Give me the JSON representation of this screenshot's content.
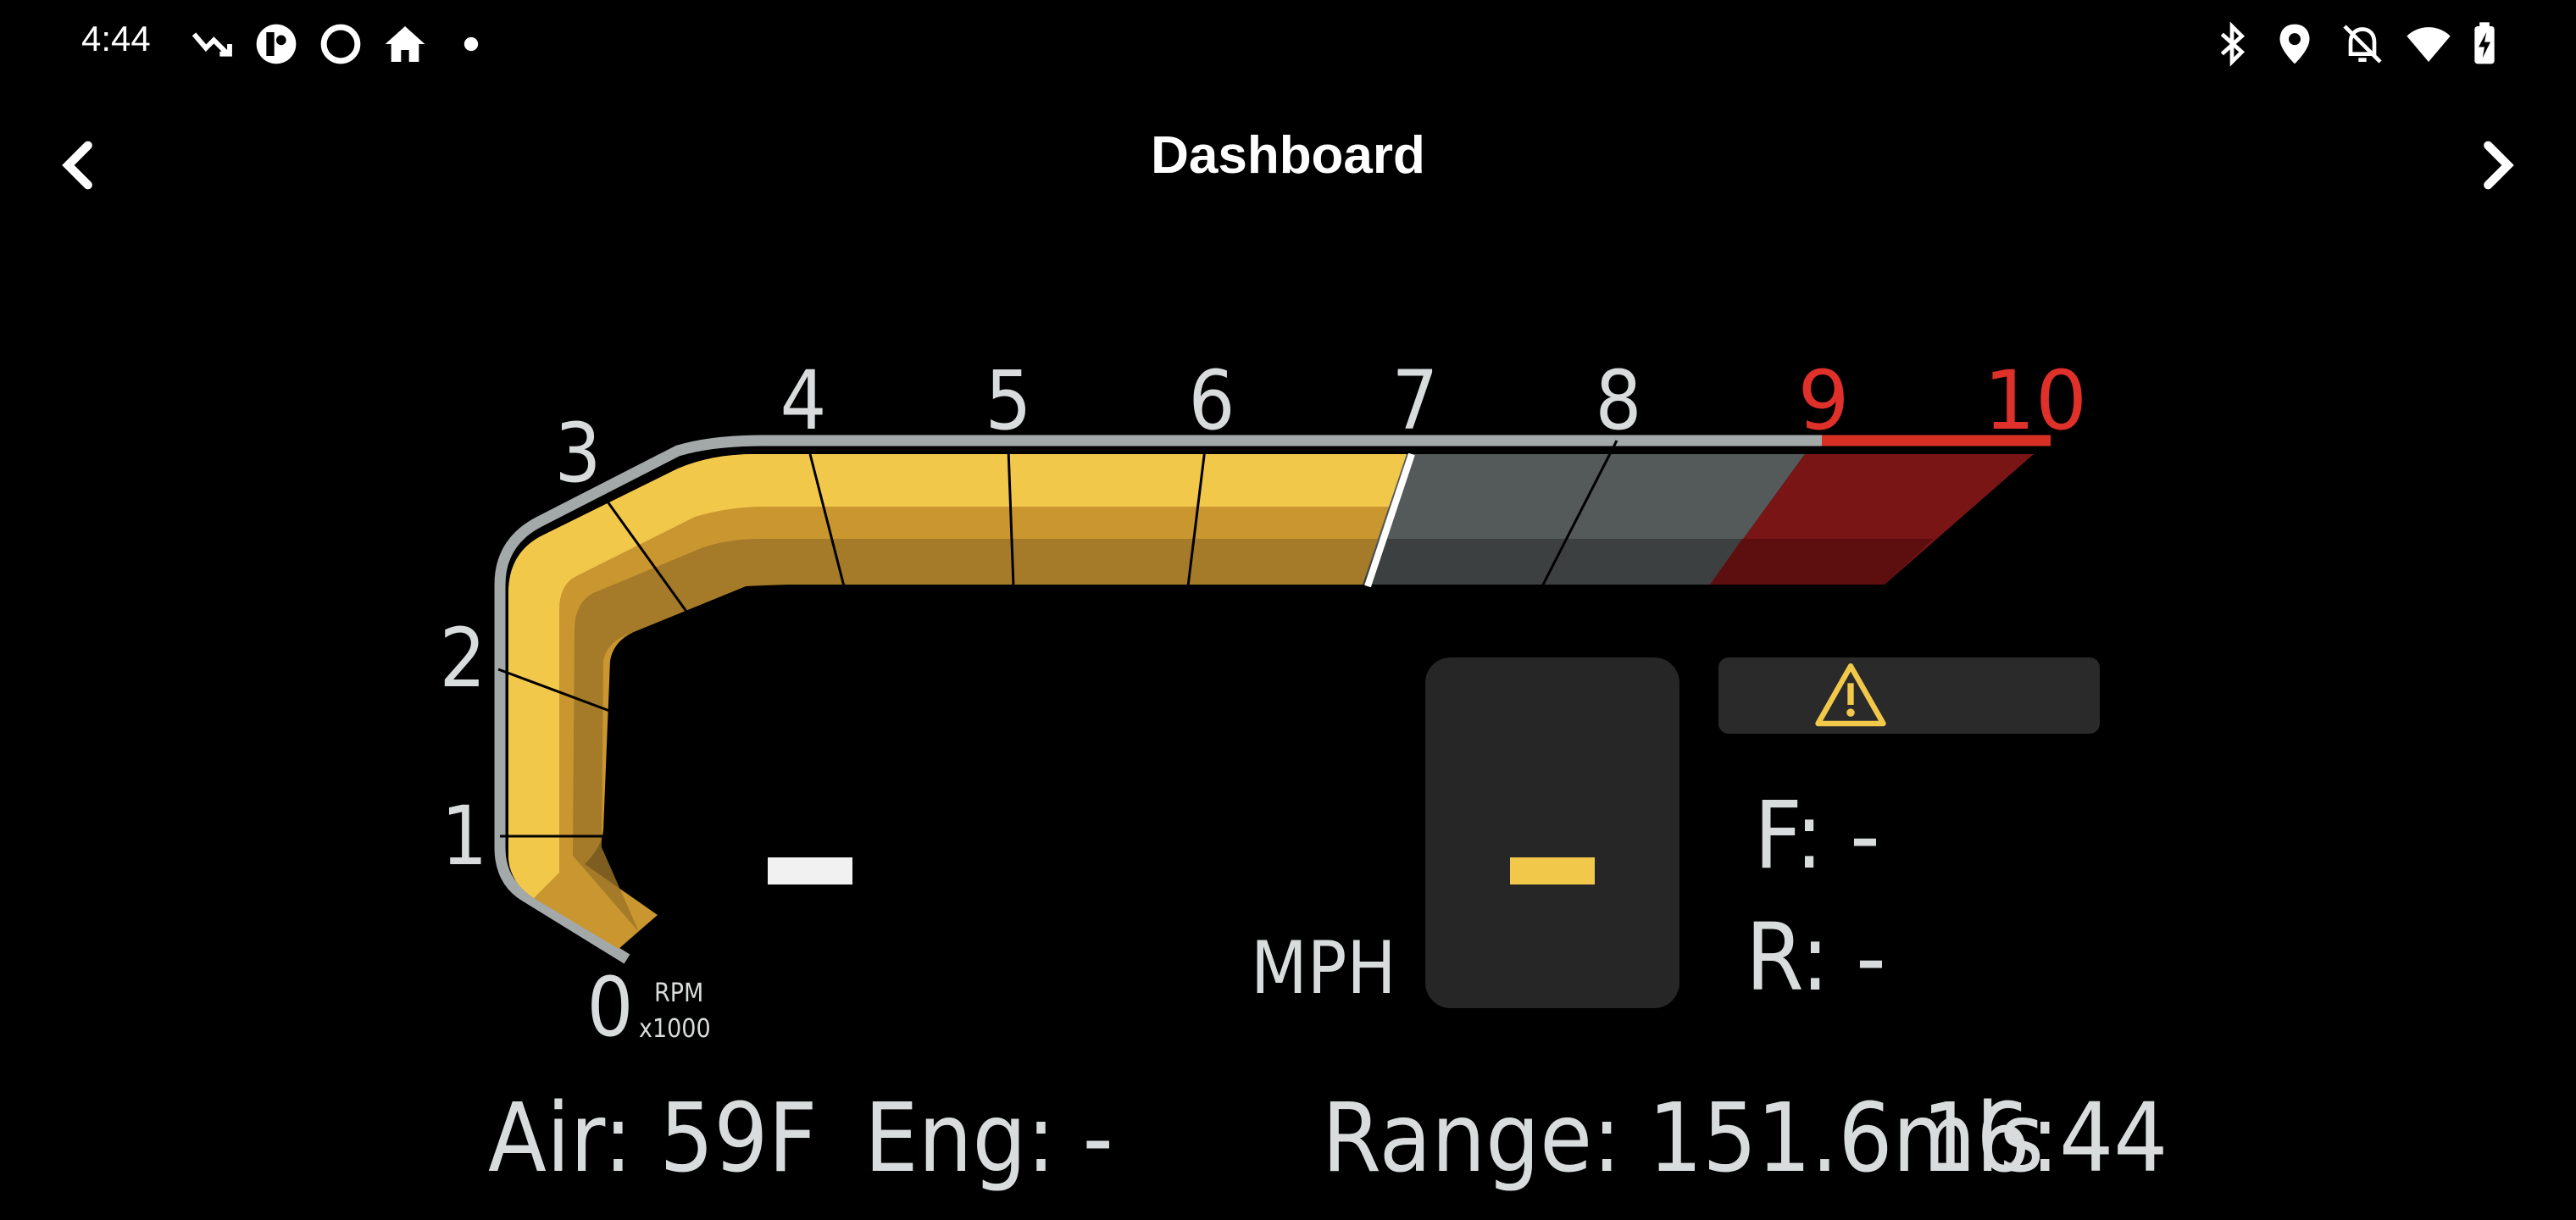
{
  "status_bar": {
    "time": "4:44",
    "left_icons": [
      "missed-call-icon",
      "app-icon",
      "circle-icon",
      "home-icon",
      "dot-icon"
    ],
    "right_icons": [
      "bluetooth-icon",
      "location-icon",
      "notifications-off-icon",
      "wifi-icon",
      "battery-charging-icon"
    ]
  },
  "app_bar": {
    "title": "Dashboard",
    "back_icon": "chevron-left-icon",
    "forward_icon": "chevron-right-icon"
  },
  "tachometer": {
    "tick_labels": [
      "0",
      "1",
      "2",
      "3",
      "4",
      "5",
      "6",
      "7",
      "8",
      "9",
      "10"
    ],
    "unit_line1": "RPM",
    "unit_line2": "x1000",
    "redline_start": 9,
    "colors": {
      "active": "#f2c84b",
      "inactive": "#555a5a",
      "redline": "#7a1515",
      "redline_label": "#e0302a",
      "frame": "#a3a9a9"
    }
  },
  "speed": {
    "value": "-",
    "unit": "MPH"
  },
  "gear": {
    "value": "-"
  },
  "warning": {
    "icon": "warning-triangle-icon"
  },
  "tire_pressure": {
    "front": "F: -",
    "rear": "R: -"
  },
  "footer": {
    "air": "Air: 59F",
    "engine": "Eng: -",
    "range": "Range: 151.6mls",
    "clock": "16:44"
  }
}
